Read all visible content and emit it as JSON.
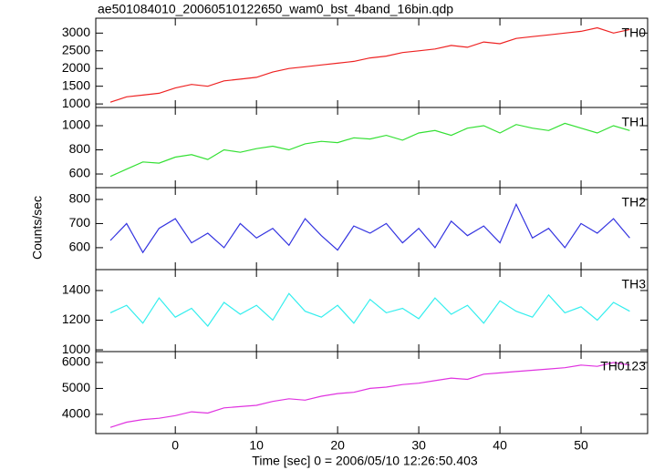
{
  "chart_data": {
    "type": "line",
    "title": "ae501084010_20060510122650_wam0_bst_4band_16bin.qdp",
    "x_label": "Time [sec] 0 = 2006/05/10 12:26:50.403",
    "y_label": "Counts/sec",
    "xlim": [
      -9.8,
      58.2
    ],
    "xticks": [
      0,
      10,
      20,
      30,
      40,
      50
    ],
    "x": [
      -8,
      -6,
      -4,
      -2,
      0,
      2,
      4,
      6,
      8,
      10,
      12,
      14,
      16,
      18,
      20,
      22,
      24,
      26,
      28,
      30,
      32,
      34,
      36,
      38,
      40,
      42,
      44,
      46,
      48,
      50,
      52,
      54,
      56
    ],
    "series": [
      {
        "name": "TH0",
        "color": "#ee2222",
        "ylim": [
          900,
          3420
        ],
        "yticks": [
          1000,
          1500,
          2000,
          2500,
          3000
        ],
        "values": [
          1050,
          1200,
          1250,
          1300,
          1450,
          1550,
          1500,
          1650,
          1700,
          1750,
          1900,
          2000,
          2050,
          2100,
          2150,
          2200,
          2300,
          2350,
          2450,
          2500,
          2550,
          2650,
          2600,
          2750,
          2700,
          2850,
          2900,
          2950,
          3000,
          3050,
          3150,
          3000,
          3100
        ]
      },
      {
        "name": "TH1",
        "color": "#33e033",
        "ylim": [
          487,
          1151
        ],
        "yticks": [
          600,
          800,
          1000
        ],
        "values": [
          580,
          640,
          700,
          690,
          740,
          760,
          720,
          800,
          780,
          810,
          830,
          800,
          850,
          870,
          860,
          900,
          890,
          920,
          880,
          940,
          960,
          920,
          980,
          1000,
          940,
          1010,
          980,
          960,
          1020,
          980,
          940,
          1000,
          960
        ]
      },
      {
        "name": "TH2",
        "color": "#3333e0",
        "ylim": [
          509,
          849
        ],
        "yticks": [
          600,
          700,
          800
        ],
        "values": [
          630,
          700,
          580,
          680,
          720,
          620,
          660,
          600,
          700,
          640,
          680,
          610,
          720,
          650,
          590,
          690,
          660,
          700,
          620,
          680,
          600,
          710,
          650,
          690,
          620,
          780,
          640,
          680,
          600,
          700,
          660,
          720,
          640
        ]
      },
      {
        "name": "TH3",
        "color": "#33eeee",
        "ylim": [
          988,
          1541
        ],
        "yticks": [
          1000,
          1200,
          1400
        ],
        "values": [
          1250,
          1300,
          1180,
          1350,
          1220,
          1280,
          1160,
          1320,
          1240,
          1300,
          1200,
          1380,
          1260,
          1220,
          1300,
          1180,
          1340,
          1250,
          1280,
          1210,
          1350,
          1240,
          1300,
          1180,
          1330,
          1260,
          1220,
          1370,
          1250,
          1290,
          1200,
          1320,
          1260
        ]
      },
      {
        "name": "TH0123",
        "color": "#e033e0",
        "ylim": [
          3260,
          6420
        ],
        "yticks": [
          4000,
          5000,
          6000
        ],
        "values": [
          3500,
          3700,
          3800,
          3850,
          3950,
          4100,
          4050,
          4250,
          4300,
          4350,
          4500,
          4600,
          4550,
          4700,
          4800,
          4850,
          5000,
          5050,
          5150,
          5200,
          5300,
          5400,
          5350,
          5550,
          5600,
          5650,
          5700,
          5750,
          5800,
          5900,
          5850,
          6000,
          5900
        ]
      }
    ]
  }
}
